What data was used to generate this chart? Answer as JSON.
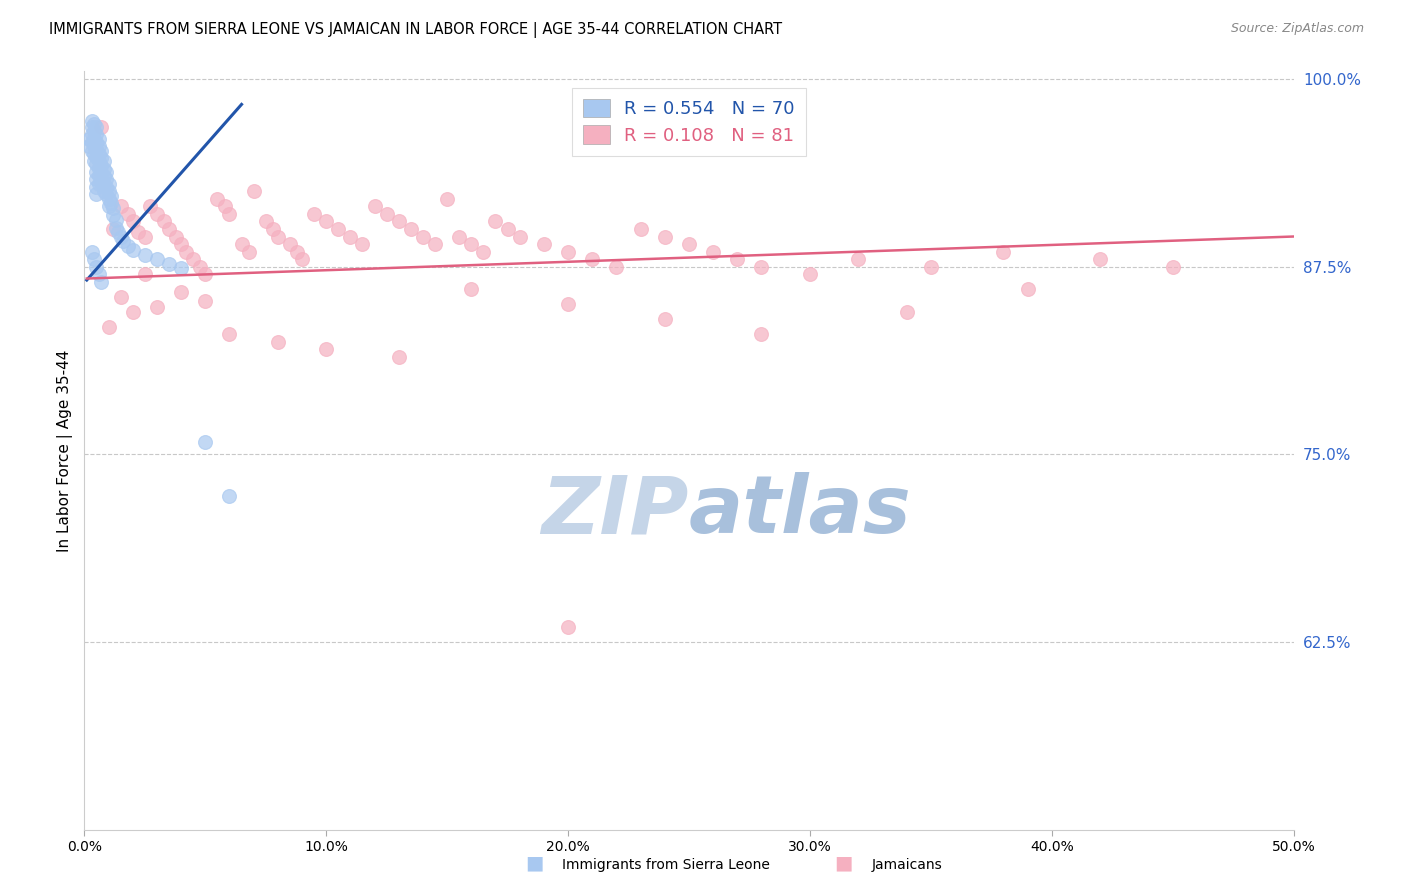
{
  "title": "IMMIGRANTS FROM SIERRA LEONE VS JAMAICAN IN LABOR FORCE | AGE 35-44 CORRELATION CHART",
  "source": "Source: ZipAtlas.com",
  "ylabel": "In Labor Force | Age 35-44",
  "xlim": [
    0.0,
    0.5
  ],
  "ylim": [
    0.5,
    1.005
  ],
  "xticks": [
    0.0,
    0.1,
    0.2,
    0.3,
    0.4,
    0.5
  ],
  "xticklabels": [
    "0.0%",
    "10.0%",
    "20.0%",
    "30.0%",
    "40.0%",
    "50.0%"
  ],
  "yticks_right": [
    0.625,
    0.75,
    0.875,
    1.0
  ],
  "yticklabels_right": [
    "62.5%",
    "75.0%",
    "87.5%",
    "100.0%"
  ],
  "legend_blue_r": "0.554",
  "legend_blue_n": "70",
  "legend_pink_r": "0.108",
  "legend_pink_n": "81",
  "legend_labels": [
    "Immigrants from Sierra Leone",
    "Jamaicans"
  ],
  "blue_color": "#A8C8F0",
  "pink_color": "#F5B0C0",
  "blue_line_color": "#2255AA",
  "pink_line_color": "#E06080",
  "watermark": "ZIPatlas",
  "watermark_color": "#D0DFF0",
  "axis_color": "#3366CC",
  "blue_scatter_x": [
    0.002,
    0.002,
    0.003,
    0.003,
    0.003,
    0.003,
    0.003,
    0.004,
    0.004,
    0.004,
    0.004,
    0.004,
    0.004,
    0.005,
    0.005,
    0.005,
    0.005,
    0.005,
    0.005,
    0.005,
    0.005,
    0.005,
    0.005,
    0.006,
    0.006,
    0.006,
    0.006,
    0.006,
    0.006,
    0.006,
    0.007,
    0.007,
    0.007,
    0.007,
    0.007,
    0.008,
    0.008,
    0.008,
    0.008,
    0.008,
    0.009,
    0.009,
    0.009,
    0.009,
    0.01,
    0.01,
    0.01,
    0.01,
    0.011,
    0.011,
    0.012,
    0.012,
    0.013,
    0.013,
    0.014,
    0.015,
    0.016,
    0.018,
    0.02,
    0.025,
    0.03,
    0.035,
    0.04,
    0.05,
    0.06,
    0.003,
    0.004,
    0.005,
    0.006,
    0.007
  ],
  "blue_scatter_y": [
    0.96,
    0.955,
    0.972,
    0.968,
    0.963,
    0.958,
    0.952,
    0.97,
    0.965,
    0.96,
    0.955,
    0.95,
    0.945,
    0.968,
    0.963,
    0.958,
    0.953,
    0.948,
    0.943,
    0.938,
    0.933,
    0.928,
    0.923,
    0.96,
    0.955,
    0.95,
    0.945,
    0.94,
    0.935,
    0.93,
    0.952,
    0.947,
    0.942,
    0.937,
    0.932,
    0.945,
    0.94,
    0.935,
    0.93,
    0.925,
    0.938,
    0.933,
    0.928,
    0.923,
    0.93,
    0.925,
    0.92,
    0.915,
    0.922,
    0.917,
    0.914,
    0.909,
    0.906,
    0.901,
    0.898,
    0.895,
    0.892,
    0.889,
    0.886,
    0.883,
    0.88,
    0.877,
    0.874,
    0.758,
    0.722,
    0.885,
    0.88,
    0.875,
    0.87,
    0.865
  ],
  "pink_scatter_x": [
    0.007,
    0.012,
    0.015,
    0.018,
    0.02,
    0.022,
    0.025,
    0.027,
    0.03,
    0.033,
    0.035,
    0.038,
    0.04,
    0.042,
    0.045,
    0.048,
    0.05,
    0.055,
    0.058,
    0.06,
    0.065,
    0.068,
    0.07,
    0.075,
    0.078,
    0.08,
    0.085,
    0.088,
    0.09,
    0.095,
    0.1,
    0.105,
    0.11,
    0.115,
    0.12,
    0.125,
    0.13,
    0.135,
    0.14,
    0.145,
    0.15,
    0.155,
    0.16,
    0.165,
    0.17,
    0.175,
    0.18,
    0.19,
    0.2,
    0.21,
    0.22,
    0.23,
    0.24,
    0.25,
    0.26,
    0.27,
    0.28,
    0.3,
    0.32,
    0.35,
    0.38,
    0.42,
    0.01,
    0.015,
    0.02,
    0.025,
    0.03,
    0.04,
    0.05,
    0.06,
    0.08,
    0.1,
    0.13,
    0.16,
    0.2,
    0.24,
    0.28,
    0.34,
    0.39,
    0.45,
    0.2
  ],
  "pink_scatter_y": [
    0.968,
    0.9,
    0.915,
    0.91,
    0.905,
    0.898,
    0.895,
    0.915,
    0.91,
    0.905,
    0.9,
    0.895,
    0.89,
    0.885,
    0.88,
    0.875,
    0.87,
    0.92,
    0.915,
    0.91,
    0.89,
    0.885,
    0.925,
    0.905,
    0.9,
    0.895,
    0.89,
    0.885,
    0.88,
    0.91,
    0.905,
    0.9,
    0.895,
    0.89,
    0.915,
    0.91,
    0.905,
    0.9,
    0.895,
    0.89,
    0.92,
    0.895,
    0.89,
    0.885,
    0.905,
    0.9,
    0.895,
    0.89,
    0.885,
    0.88,
    0.875,
    0.9,
    0.895,
    0.89,
    0.885,
    0.88,
    0.875,
    0.87,
    0.88,
    0.875,
    0.885,
    0.88,
    0.835,
    0.855,
    0.845,
    0.87,
    0.848,
    0.858,
    0.852,
    0.83,
    0.825,
    0.82,
    0.815,
    0.86,
    0.85,
    0.84,
    0.83,
    0.845,
    0.86,
    0.875,
    0.635
  ],
  "blue_trend_x0": 0.001,
  "blue_trend_x1": 0.065,
  "blue_trend_y0": 0.866,
  "blue_trend_y1": 0.983,
  "pink_trend_x0": 0.001,
  "pink_trend_x1": 0.5,
  "pink_trend_y0": 0.867,
  "pink_trend_y1": 0.895
}
